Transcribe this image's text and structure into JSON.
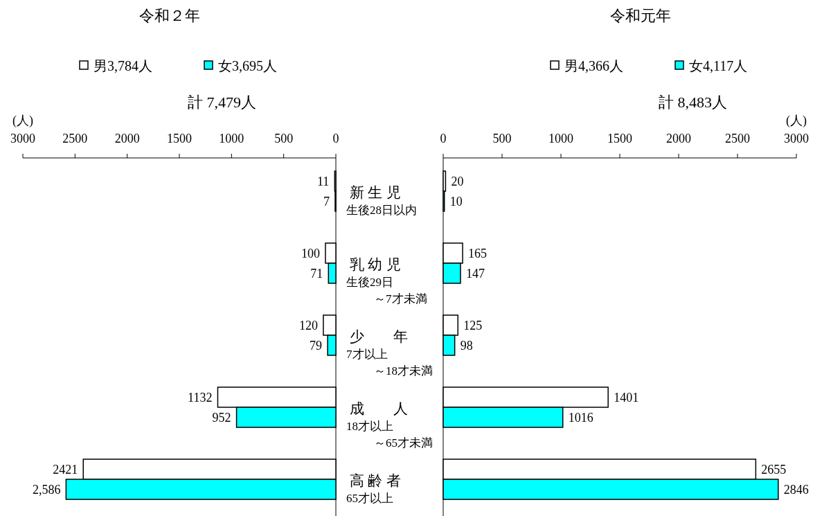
{
  "chart_data": [
    {
      "type": "bar",
      "orientation": "horizontal",
      "title": "令和２年",
      "xlabel": "(人)",
      "categories": [
        "新 生 児",
        "乳 幼 児",
        "少　　年",
        "成　　人",
        "高 齢 者"
      ],
      "series": [
        {
          "name": "男3,784人",
          "color": "#ffffff",
          "values": [
            11,
            100,
            120,
            1132,
            2421
          ],
          "value_labels": [
            "11",
            "100",
            "120",
            "1132",
            "2421"
          ]
        },
        {
          "name": "女3,695人",
          "color": "#00ffff",
          "values": [
            7,
            71,
            79,
            952,
            2586
          ],
          "value_labels": [
            "7",
            "71",
            "79",
            "952",
            "2,586"
          ]
        }
      ],
      "xlim": [
        3000,
        0
      ],
      "xticks": [
        3000,
        2500,
        2000,
        1500,
        1000,
        500,
        0
      ],
      "legend": "top",
      "annotations": [
        "計 7,479人",
        "生後28日以内",
        "生後29日",
        "～7才未満",
        "7才以上",
        "～18才未満",
        "18才以上",
        "～65才未満",
        "65才以上"
      ]
    },
    {
      "type": "bar",
      "orientation": "horizontal",
      "title": "令和元年",
      "xlabel": "(人)",
      "categories": [
        null,
        null,
        null,
        null,
        null
      ],
      "series": [
        {
          "name": "男4,366人",
          "color": "#ffffff",
          "values": [
            20,
            165,
            125,
            1401,
            2655
          ],
          "value_labels": [
            "20",
            "165",
            "125",
            "1401",
            "2655"
          ]
        },
        {
          "name": "女4,117人",
          "color": "#00ffff",
          "values": [
            10,
            147,
            98,
            1016,
            2846
          ],
          "value_labels": [
            "10",
            "147",
            "98",
            "1016",
            "2846"
          ]
        }
      ],
      "xlim": [
        0,
        3000
      ],
      "xticks": [
        0,
        500,
        1000,
        1500,
        2000,
        2500,
        3000
      ],
      "legend": "top",
      "tick_labels": "x",
      "annotations": [
        "計 8,483人"
      ]
    }
  ]
}
